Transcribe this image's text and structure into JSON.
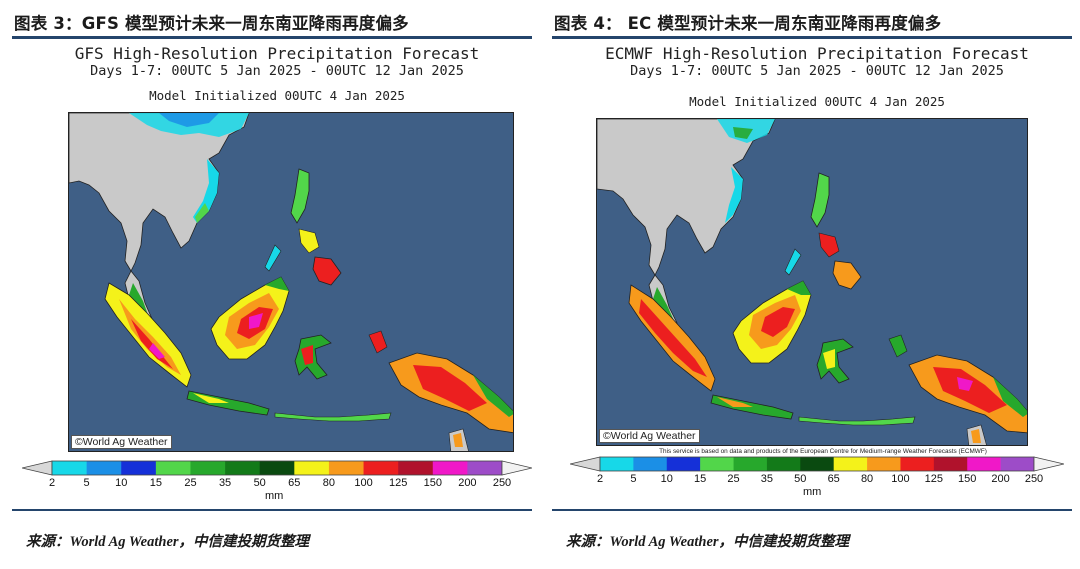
{
  "panels": [
    {
      "figure_title": "图表 3：GFS 模型预计未来一周东南亚降雨再度偏多",
      "map_title": "GFS High-Resolution Precipitation Forecast",
      "map_subtitle": "Days 1-7: 00UTC 5 Jan 2025 - 00UTC 12 Jan 2025",
      "model_init": "Model Initialized 00UTC 4 Jan 2025",
      "watermark": "©World Ag Weather",
      "notice": "",
      "source": "来源：World Ag Weather，中信建投期货整理"
    },
    {
      "figure_title": "图表 4： EC 模型预计未来一周东南亚降雨再度偏多",
      "map_title": "ECMWF High-Resolution Precipitation Forecast",
      "map_subtitle": "Days 1-7: 00UTC 5 Jan 2025 - 00UTC 12 Jan 2025",
      "model_init": "Model Initialized 00UTC 4 Jan 2025",
      "watermark": "©World Ag Weather",
      "notice": "This service is based on data and products of the European Centre for Medium-range Weather Forecasts (ECMWF)",
      "source": "来源：World Ag Weather，中信建投期货整理"
    }
  ],
  "colorbar": {
    "unit": "mm",
    "ticks": [
      "2",
      "5",
      "10",
      "15",
      "25",
      "35",
      "50",
      "65",
      "80",
      "100",
      "125",
      "150",
      "200",
      "250"
    ],
    "colors": [
      "#17d8e8",
      "#1b8fe6",
      "#1530d8",
      "#52d64a",
      "#27a82c",
      "#137a19",
      "#0a4a10",
      "#f4f21a",
      "#f79a1c",
      "#ec1f1f",
      "#b0122c",
      "#f018c8",
      "#9d4cc8"
    ]
  },
  "map_colors": {
    "ocean": "#3f5f86",
    "land": "#c9c9c9"
  }
}
